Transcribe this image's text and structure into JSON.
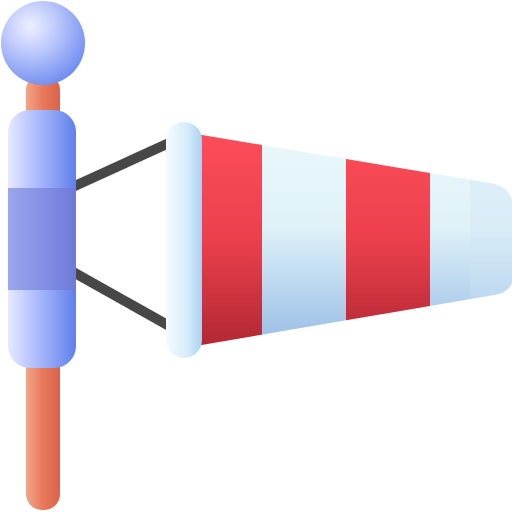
{
  "icon": {
    "subject": "windsock-icon",
    "colors": {
      "pole": "#e8795c",
      "pole_light": "#f5a07f",
      "ball_light": "#c9d3ff",
      "ball_dark": "#6f8cf0",
      "sleeve_light": "#dfe7ff",
      "sleeve_mid": "#8ea5f5",
      "sleeve_band": "#7b86dd",
      "strut": "#474747",
      "sock_red_top": "#ff4d5a",
      "sock_red_bottom": "#b3262e",
      "sock_white_top": "#e8f8fb",
      "sock_white_bottom": "#9cc1e6",
      "ring_light": "#eaf6ff",
      "ring_dark": "#b8dcf6",
      "background": "#ffffff"
    }
  }
}
